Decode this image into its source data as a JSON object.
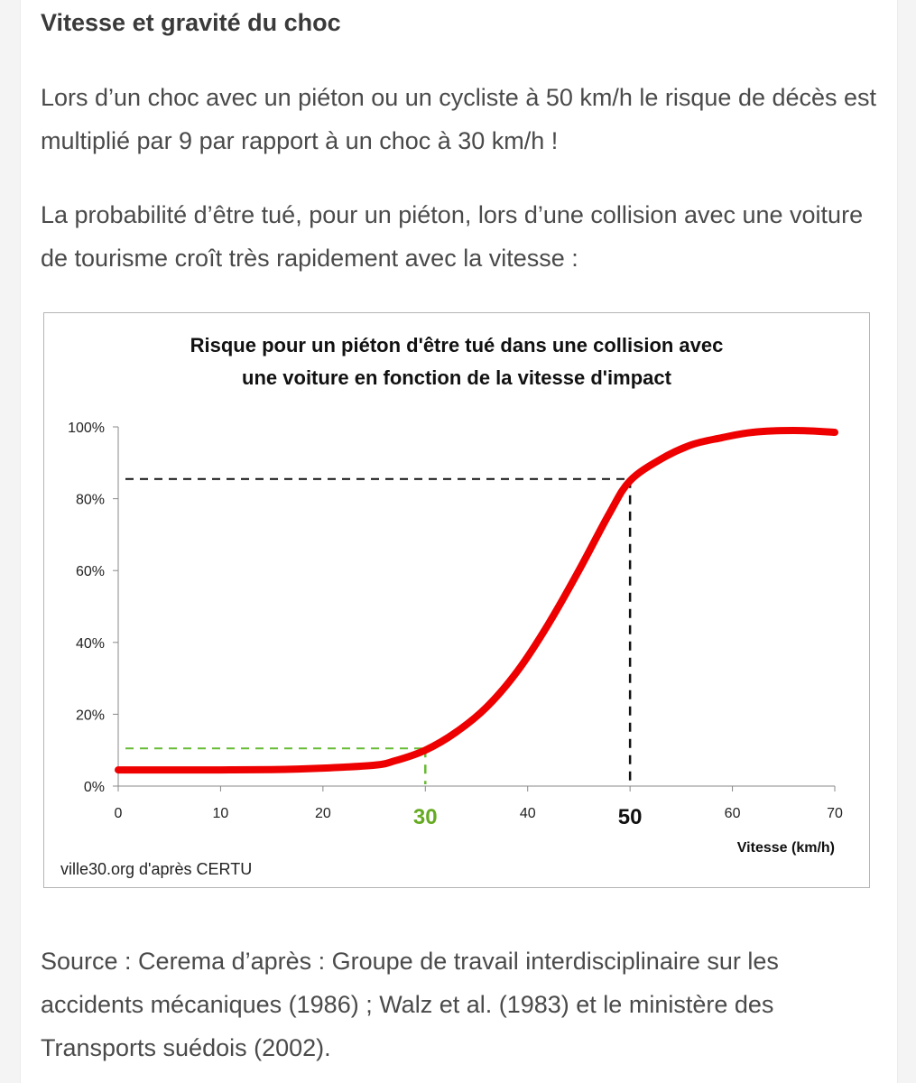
{
  "article": {
    "heading": "Vitesse et gravité du choc",
    "paragraph_1": "Lors d’un choc avec un piéton ou un cycliste à 50 km/h le risque de décès est multiplié par 9 par rapport à un choc à 30 km/h !",
    "paragraph_2": "La probabilité d’être tué, pour un piéton, lors d’une collision avec une voiture de tourisme croît très rapidement avec la vitesse :",
    "source": "Source : Cerema d’après  : Groupe de travail interdisciplinaire sur les accidents mécaniques (1986) ; Walz et al. (1983) et le ministère des Transports suédois (2002)."
  },
  "chart_data": {
    "type": "line",
    "title_line1": "Risque pour un piéton d'être tué dans une collision avec",
    "title_line2": "une voiture en fonction de la vitesse d'impact",
    "xlabel": "Vitesse (km/h)",
    "ylabel": "",
    "xlim": [
      0,
      70
    ],
    "ylim": [
      0,
      100
    ],
    "x_ticks": [
      0,
      10,
      20,
      30,
      40,
      50,
      60,
      70
    ],
    "y_ticks": [
      0,
      20,
      40,
      60,
      80,
      100
    ],
    "y_tick_labels": [
      "0%",
      "20%",
      "40%",
      "60%",
      "80%",
      "100%"
    ],
    "grid": false,
    "series": [
      {
        "color": "#ee0000",
        "x": [
          0,
          5,
          10,
          15,
          20,
          25,
          27,
          30,
          33,
          36,
          39,
          42,
          45,
          48,
          50,
          53,
          56,
          59,
          62,
          66,
          70
        ],
        "y": [
          4.5,
          4.5,
          4.5,
          4.6,
          5,
          5.8,
          7,
          10,
          15,
          22,
          32,
          45,
          60,
          76,
          85,
          91,
          95,
          97,
          98.5,
          99,
          98.5
        ]
      }
    ],
    "reference_lines": [
      {
        "x": 30,
        "y": 10.5,
        "color": "#66bb33"
      },
      {
        "x": 50,
        "y": 85.5,
        "color": "#111111"
      }
    ],
    "highlight_ticks": [
      {
        "value": 30,
        "label": "30",
        "color": "#66aa22"
      },
      {
        "value": 50,
        "label": "50",
        "color": "#111111"
      }
    ],
    "credit": "ville30.org d'après CERTU",
    "colors": {
      "curve": "#ee0000",
      "green_ref": "#66bb33",
      "black_ref": "#111111",
      "axis": "#888888"
    }
  }
}
